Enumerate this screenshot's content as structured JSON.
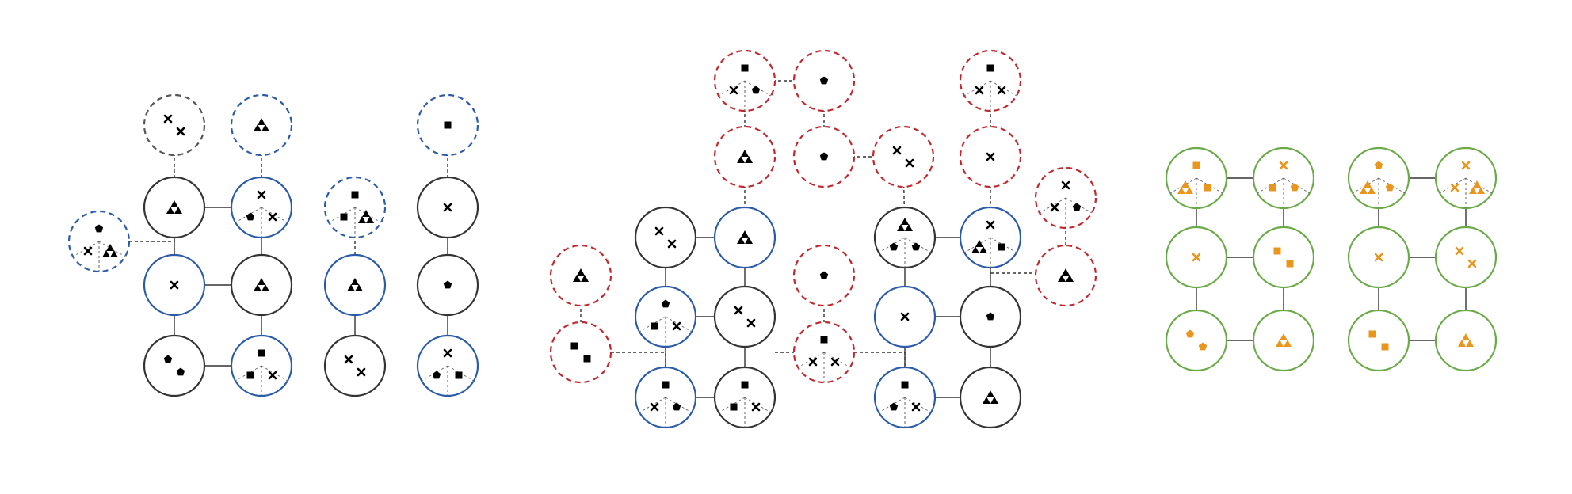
{
  "colors": {
    "background": "#ffffff",
    "node_dark": "#333333",
    "node_blue": "#2b5ba8",
    "node_red": "#c0282d",
    "node_green": "#6aaa47",
    "node_gray_dashed": "#555555",
    "marker_black": "#000000",
    "marker_orange": "#e8961e",
    "edge": "#333333"
  },
  "legend_shapes": [
    "x-mark",
    "triangle-cluster",
    "square",
    "pentagon"
  ],
  "panels": [
    {
      "name": "panel-left",
      "nodes": [
        {
          "id": "L-d1",
          "style": "gray-dashed",
          "markers": [
            "x",
            "x"
          ],
          "sectors": false
        },
        {
          "id": "L-d2",
          "style": "blue-dashed",
          "markers": [
            "tri"
          ],
          "sectors": false
        },
        {
          "id": "L-d3",
          "style": "blue-dashed",
          "markers": [
            "pent",
            "x",
            "tri"
          ],
          "sectors": true
        },
        {
          "id": "L-d4",
          "style": "blue-dashed",
          "markers": [
            "sq",
            "sq",
            "tri"
          ],
          "sectors": true
        },
        {
          "id": "L-d5",
          "style": "blue-dashed",
          "markers": [
            "sq"
          ],
          "sectors": false
        },
        {
          "id": "L-a1",
          "style": "dark",
          "markers": [
            "tri"
          ],
          "sectors": false
        },
        {
          "id": "L-a2",
          "style": "blue",
          "markers": [
            "x",
            "pent",
            "x"
          ],
          "sectors": true
        },
        {
          "id": "L-b1",
          "style": "blue",
          "markers": [
            "x"
          ],
          "sectors": false
        },
        {
          "id": "L-b2",
          "style": "dark",
          "markers": [
            "tri"
          ],
          "sectors": false
        },
        {
          "id": "L-c1",
          "style": "dark",
          "markers": [
            "pent",
            "pent"
          ],
          "sectors": false
        },
        {
          "id": "L-c2",
          "style": "blue",
          "markers": [
            "sq",
            "sq",
            "x"
          ],
          "sectors": true
        },
        {
          "id": "L-e1",
          "style": "blue",
          "markers": [
            "tri"
          ],
          "sectors": false
        },
        {
          "id": "L-e2",
          "style": "dark",
          "markers": [
            "x",
            "x"
          ],
          "sectors": false
        },
        {
          "id": "L-f1",
          "style": "dark",
          "markers": [
            "x"
          ],
          "sectors": false
        },
        {
          "id": "L-f2",
          "style": "dark",
          "markers": [
            "pent"
          ],
          "sectors": false
        },
        {
          "id": "L-f3",
          "style": "blue",
          "markers": [
            "x",
            "pent",
            "sq"
          ],
          "sectors": true
        }
      ]
    },
    {
      "name": "panel-middle",
      "nodes": [
        {
          "id": "M-r1",
          "style": "red-dashed",
          "markers": [
            "sq",
            "x",
            "pent"
          ],
          "sectors": true
        },
        {
          "id": "M-r2",
          "style": "red-dashed",
          "markers": [
            "pent"
          ],
          "sectors": false
        },
        {
          "id": "M-r3",
          "style": "red-dashed",
          "markers": [
            "sq",
            "x",
            "x"
          ],
          "sectors": true
        },
        {
          "id": "M-r4",
          "style": "red-dashed",
          "markers": [
            "tri"
          ],
          "sectors": false
        },
        {
          "id": "M-r5",
          "style": "red-dashed",
          "markers": [
            "pent"
          ],
          "sectors": false
        },
        {
          "id": "M-r6",
          "style": "red-dashed",
          "markers": [
            "x",
            "x"
          ],
          "sectors": false
        },
        {
          "id": "M-r7",
          "style": "red-dashed",
          "markers": [
            "x"
          ],
          "sectors": false
        },
        {
          "id": "M-r8",
          "style": "red-dashed",
          "markers": [
            "x",
            "x",
            "pent"
          ],
          "sectors": true
        },
        {
          "id": "M-r9",
          "style": "red-dashed",
          "markers": [
            "tri"
          ],
          "sectors": false
        },
        {
          "id": "M-r10",
          "style": "red-dashed",
          "markers": [
            "sq",
            "sq"
          ],
          "sectors": false
        },
        {
          "id": "M-r11",
          "style": "red-dashed",
          "markers": [
            "pent"
          ],
          "sectors": false
        },
        {
          "id": "M-r12",
          "style": "red-dashed",
          "markers": [
            "sq",
            "x",
            "x"
          ],
          "sectors": true
        },
        {
          "id": "M-r13",
          "style": "red-dashed",
          "markers": [
            "tri"
          ],
          "sectors": false
        },
        {
          "id": "M-a1",
          "style": "dark",
          "markers": [
            "x",
            "x"
          ],
          "sectors": false
        },
        {
          "id": "M-a2",
          "style": "blue",
          "markers": [
            "tri"
          ],
          "sectors": false
        },
        {
          "id": "M-b1",
          "style": "blue",
          "markers": [
            "pent",
            "sq",
            "x"
          ],
          "sectors": true
        },
        {
          "id": "M-b2",
          "style": "dark",
          "markers": [
            "x",
            "x"
          ],
          "sectors": false
        },
        {
          "id": "M-c1",
          "style": "blue",
          "markers": [
            "sq",
            "x",
            "pent"
          ],
          "sectors": true
        },
        {
          "id": "M-c2",
          "style": "dark",
          "markers": [
            "sq",
            "sq",
            "x"
          ],
          "sectors": true
        },
        {
          "id": "M-g1",
          "style": "dark",
          "markers": [
            "tri",
            "pent",
            "pent"
          ],
          "sectors": true
        },
        {
          "id": "M-g2",
          "style": "blue",
          "markers": [
            "x",
            "tri",
            "sq"
          ],
          "sectors": true
        },
        {
          "id": "M-h1",
          "style": "blue",
          "markers": [
            "x"
          ],
          "sectors": false
        },
        {
          "id": "M-h2",
          "style": "dark",
          "markers": [
            "pent"
          ],
          "sectors": false
        },
        {
          "id": "M-i1",
          "style": "blue",
          "markers": [
            "sq",
            "pent",
            "x"
          ],
          "sectors": true
        },
        {
          "id": "M-i2",
          "style": "dark",
          "markers": [
            "tri"
          ],
          "sectors": false
        }
      ]
    },
    {
      "name": "panel-right",
      "nodes": [
        {
          "id": "R-a1",
          "style": "green",
          "markers": [
            "sq",
            "tri",
            "sq"
          ],
          "sectors": true
        },
        {
          "id": "R-a2",
          "style": "green",
          "markers": [
            "x",
            "sq",
            "pent"
          ],
          "sectors": true
        },
        {
          "id": "R-b1",
          "style": "green",
          "markers": [
            "x"
          ],
          "sectors": false
        },
        {
          "id": "R-b2",
          "style": "green",
          "markers": [
            "sq",
            "sq"
          ],
          "sectors": false
        },
        {
          "id": "R-c1",
          "style": "green",
          "markers": [
            "pent",
            "pent"
          ],
          "sectors": false
        },
        {
          "id": "R-c2",
          "style": "green",
          "markers": [
            "tri"
          ],
          "sectors": false
        },
        {
          "id": "R-d1",
          "style": "green",
          "markers": [
            "pent",
            "tri",
            "pent"
          ],
          "sectors": true
        },
        {
          "id": "R-d2",
          "style": "green",
          "markers": [
            "x",
            "x",
            "tri"
          ],
          "sectors": true
        },
        {
          "id": "R-e1",
          "style": "green",
          "markers": [
            "x"
          ],
          "sectors": false
        },
        {
          "id": "R-e2",
          "style": "green",
          "markers": [
            "x",
            "x"
          ],
          "sectors": false
        },
        {
          "id": "R-f1",
          "style": "green",
          "markers": [
            "sq",
            "sq"
          ],
          "sectors": false
        },
        {
          "id": "R-f2",
          "style": "green",
          "markers": [
            "tri"
          ],
          "sectors": false
        }
      ]
    }
  ]
}
